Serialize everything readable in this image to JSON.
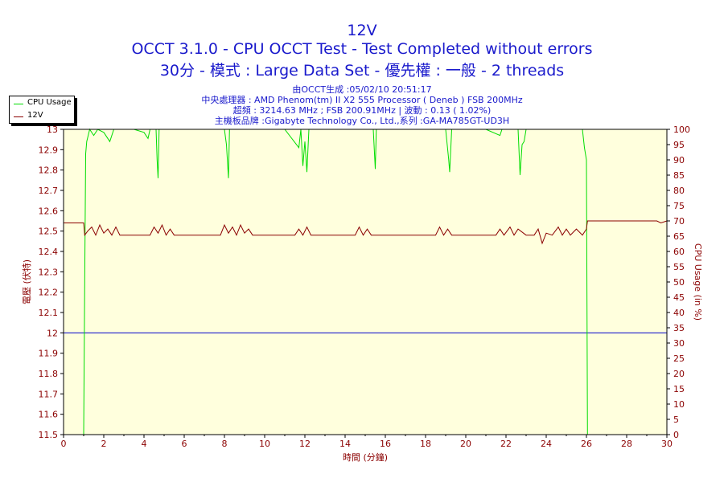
{
  "header": {
    "title": "12V",
    "subtitle1": "OCCT 3.1.0 - CPU OCCT Test - Test Completed without errors",
    "subtitle2": "30分 - 模式 : Large Data Set - 優先權 : 一般 - 2 threads"
  },
  "info": {
    "line1": "由OCCT生成 :05/02/10 20:51:17",
    "line2": "中央處理器 : AMD Phenom(tm) II X2 555 Processor ( Deneb ) FSB 200MHz",
    "line3": "超頻 : 3214.63 MHz ; FSB 200.91MHz | 波動 : 0.13 ( 1.02%)",
    "line4": "主機板品牌 :Gigabyte Technology Co., Ltd.,系列 :GA-MA785GT-UD3H"
  },
  "colors": {
    "cpu": "#00dd00",
    "volt": "#8b0000",
    "ref": "#0000cc",
    "plot_bg": "#ffffdd",
    "axis_text": "#8b0000"
  },
  "chart_data": {
    "type": "line",
    "title": "12V",
    "xlabel": "時間 (分鐘)",
    "ylabel_left": "電壓 (伏特)",
    "ylabel_right": "CPU Usage (in %)",
    "xlim": [
      0,
      30
    ],
    "ylim_left": [
      11.5,
      13
    ],
    "ylim_right": [
      0,
      100
    ],
    "x_ticks": [
      "0",
      "2",
      "4",
      "6",
      "8",
      "10",
      "12",
      "14",
      "16",
      "18",
      "20",
      "22",
      "24",
      "26",
      "28",
      "30"
    ],
    "y_left_ticks": [
      "11.5",
      "11.6",
      "11.7",
      "11.8",
      "11.9",
      "12",
      "12.1",
      "12.2",
      "12.3",
      "12.4",
      "12.5",
      "12.6",
      "12.7",
      "12.8",
      "12.9",
      "13"
    ],
    "y_right_ticks": [
      "0",
      "5",
      "10",
      "15",
      "20",
      "25",
      "30",
      "35",
      "40",
      "45",
      "50",
      "55",
      "60",
      "65",
      "70",
      "75",
      "80",
      "85",
      "90",
      "95",
      "100"
    ],
    "grid": false,
    "legend_position": "top-left outside",
    "reference_line": {
      "y": 12,
      "axis": "left"
    },
    "series": [
      {
        "name": "CPU Usage",
        "axis": "right",
        "points": [
          [
            0,
            0
          ],
          [
            0.95,
            0
          ],
          [
            1.0,
            0
          ],
          [
            1.05,
            50
          ],
          [
            1.1,
            92
          ],
          [
            1.15,
            96
          ],
          [
            1.3,
            100
          ],
          [
            1.5,
            98
          ],
          [
            1.7,
            100
          ],
          [
            2.0,
            99
          ],
          [
            2.3,
            96
          ],
          [
            2.5,
            100
          ],
          [
            3,
            100
          ],
          [
            3.5,
            100
          ],
          [
            4,
            99
          ],
          [
            4.2,
            97
          ],
          [
            4.3,
            100
          ],
          [
            4.6,
            100
          ],
          [
            4.65,
            90
          ],
          [
            4.7,
            84
          ],
          [
            4.75,
            100
          ],
          [
            5,
            100
          ],
          [
            6,
            100
          ],
          [
            7,
            100
          ],
          [
            8,
            100
          ],
          [
            8.1,
            95
          ],
          [
            8.2,
            84
          ],
          [
            8.25,
            100
          ],
          [
            9,
            100
          ],
          [
            10,
            100
          ],
          [
            11,
            100
          ],
          [
            11.7,
            94
          ],
          [
            11.8,
            100
          ],
          [
            11.9,
            88
          ],
          [
            12.0,
            96
          ],
          [
            12.1,
            86
          ],
          [
            12.2,
            100
          ],
          [
            13,
            100
          ],
          [
            14,
            100
          ],
          [
            15,
            100
          ],
          [
            15.4,
            100
          ],
          [
            15.5,
            87
          ],
          [
            15.55,
            100
          ],
          [
            16,
            100
          ],
          [
            17,
            100
          ],
          [
            18,
            100
          ],
          [
            19,
            100
          ],
          [
            19.15,
            90
          ],
          [
            19.2,
            86
          ],
          [
            19.3,
            100
          ],
          [
            20,
            100
          ],
          [
            21,
            100
          ],
          [
            21.7,
            98
          ],
          [
            21.8,
            100
          ],
          [
            22,
            100
          ],
          [
            22.6,
            100
          ],
          [
            22.7,
            85
          ],
          [
            22.8,
            95
          ],
          [
            22.9,
            96
          ],
          [
            23,
            100
          ],
          [
            24,
            100
          ],
          [
            25,
            100
          ],
          [
            25.8,
            100
          ],
          [
            25.9,
            94
          ],
          [
            26,
            90
          ],
          [
            26.05,
            0
          ],
          [
            30,
            0
          ]
        ]
      },
      {
        "name": "12V",
        "axis": "left",
        "points": [
          [
            0,
            12.54
          ],
          [
            1.0,
            12.54
          ],
          [
            1.05,
            12.48
          ],
          [
            1.2,
            12.5
          ],
          [
            1.4,
            12.52
          ],
          [
            1.6,
            12.48
          ],
          [
            1.8,
            12.53
          ],
          [
            2.0,
            12.49
          ],
          [
            2.2,
            12.51
          ],
          [
            2.4,
            12.48
          ],
          [
            2.6,
            12.52
          ],
          [
            2.8,
            12.48
          ],
          [
            3.0,
            12.48
          ],
          [
            3.5,
            12.48
          ],
          [
            4.0,
            12.48
          ],
          [
            4.3,
            12.48
          ],
          [
            4.5,
            12.52
          ],
          [
            4.7,
            12.49
          ],
          [
            4.9,
            12.53
          ],
          [
            5.1,
            12.48
          ],
          [
            5.3,
            12.51
          ],
          [
            5.5,
            12.48
          ],
          [
            6,
            12.48
          ],
          [
            7,
            12.48
          ],
          [
            7.8,
            12.48
          ],
          [
            8.0,
            12.53
          ],
          [
            8.2,
            12.49
          ],
          [
            8.4,
            12.52
          ],
          [
            8.6,
            12.48
          ],
          [
            8.8,
            12.53
          ],
          [
            9.0,
            12.49
          ],
          [
            9.2,
            12.51
          ],
          [
            9.4,
            12.48
          ],
          [
            10,
            12.48
          ],
          [
            11,
            12.48
          ],
          [
            11.5,
            12.48
          ],
          [
            11.7,
            12.51
          ],
          [
            11.9,
            12.48
          ],
          [
            12.1,
            12.52
          ],
          [
            12.3,
            12.48
          ],
          [
            13,
            12.48
          ],
          [
            14,
            12.48
          ],
          [
            14.5,
            12.48
          ],
          [
            14.7,
            12.52
          ],
          [
            14.9,
            12.48
          ],
          [
            15.1,
            12.51
          ],
          [
            15.3,
            12.48
          ],
          [
            16,
            12.48
          ],
          [
            17,
            12.48
          ],
          [
            18,
            12.48
          ],
          [
            18.5,
            12.48
          ],
          [
            18.7,
            12.52
          ],
          [
            18.9,
            12.48
          ],
          [
            19.1,
            12.51
          ],
          [
            19.3,
            12.48
          ],
          [
            20,
            12.48
          ],
          [
            21,
            12.48
          ],
          [
            21.5,
            12.48
          ],
          [
            21.7,
            12.51
          ],
          [
            21.9,
            12.48
          ],
          [
            22.2,
            12.52
          ],
          [
            22.4,
            12.48
          ],
          [
            22.6,
            12.51
          ],
          [
            23,
            12.48
          ],
          [
            23.4,
            12.48
          ],
          [
            23.6,
            12.51
          ],
          [
            23.8,
            12.44
          ],
          [
            24.0,
            12.49
          ],
          [
            24.3,
            12.48
          ],
          [
            24.6,
            12.52
          ],
          [
            24.8,
            12.48
          ],
          [
            25.0,
            12.51
          ],
          [
            25.2,
            12.48
          ],
          [
            25.5,
            12.51
          ],
          [
            25.8,
            12.48
          ],
          [
            26.0,
            12.51
          ],
          [
            26.05,
            12.55
          ],
          [
            29.5,
            12.55
          ],
          [
            29.7,
            12.54
          ],
          [
            30,
            12.55
          ]
        ]
      }
    ]
  }
}
